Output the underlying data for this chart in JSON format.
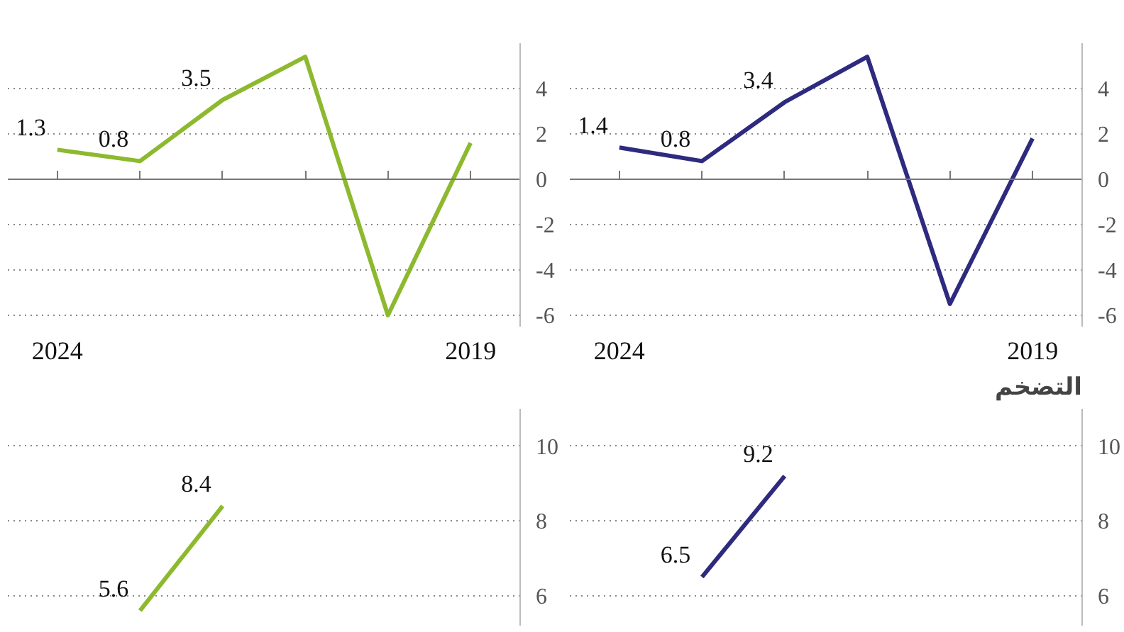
{
  "chart_data": [
    {
      "type": "line",
      "categories": [
        "2024",
        null,
        null,
        null,
        null,
        "2019"
      ],
      "series": [
        {
          "color": "#8db92e",
          "values": [
            1.3,
            0.8,
            3.5,
            5.4,
            -6.0,
            1.6
          ],
          "value_labels": [
            "1.3",
            "0.8",
            "3.5",
            null,
            null,
            null
          ]
        }
      ],
      "ylim": [
        -6.5,
        6
      ],
      "yticks": [
        -6,
        -4,
        -2,
        0,
        2,
        4
      ],
      "grid": "y"
    },
    {
      "type": "line",
      "categories": [
        "2024",
        null,
        null,
        null,
        null,
        "2019"
      ],
      "series": [
        {
          "color": "#2e2a7e",
          "values": [
            1.4,
            0.8,
            3.4,
            5.4,
            -5.5,
            1.8
          ],
          "value_labels": [
            "1.4",
            "0.8",
            "3.4",
            null,
            null,
            null
          ]
        }
      ],
      "ylim": [
        -6.5,
        6
      ],
      "yticks": [
        -6,
        -4,
        -2,
        0,
        2,
        4
      ],
      "grid": "y"
    },
    {
      "type": "line",
      "categories": [
        null,
        null,
        null,
        null,
        null,
        null
      ],
      "series": [
        {
          "color": "#8db92e",
          "values": [
            null,
            5.6,
            8.4,
            null,
            null,
            null
          ],
          "value_labels": [
            null,
            "5.6",
            "8.4",
            null,
            null,
            null
          ]
        }
      ],
      "ylim": [
        5.2,
        11
      ],
      "yticks": [
        6,
        8,
        10
      ],
      "grid": "y",
      "tick_labels": "y"
    },
    {
      "type": "line",
      "title": "التضخم",
      "categories": [
        null,
        null,
        null,
        null,
        null,
        null
      ],
      "series": [
        {
          "color": "#2e2a7e",
          "values": [
            null,
            6.5,
            9.2,
            null,
            null,
            null
          ],
          "value_labels": [
            null,
            "6.5",
            "9.2",
            null,
            null,
            null
          ]
        }
      ],
      "ylim": [
        5.2,
        11
      ],
      "yticks": [
        6,
        8,
        10
      ],
      "grid": "y",
      "tick_labels": "y"
    }
  ]
}
